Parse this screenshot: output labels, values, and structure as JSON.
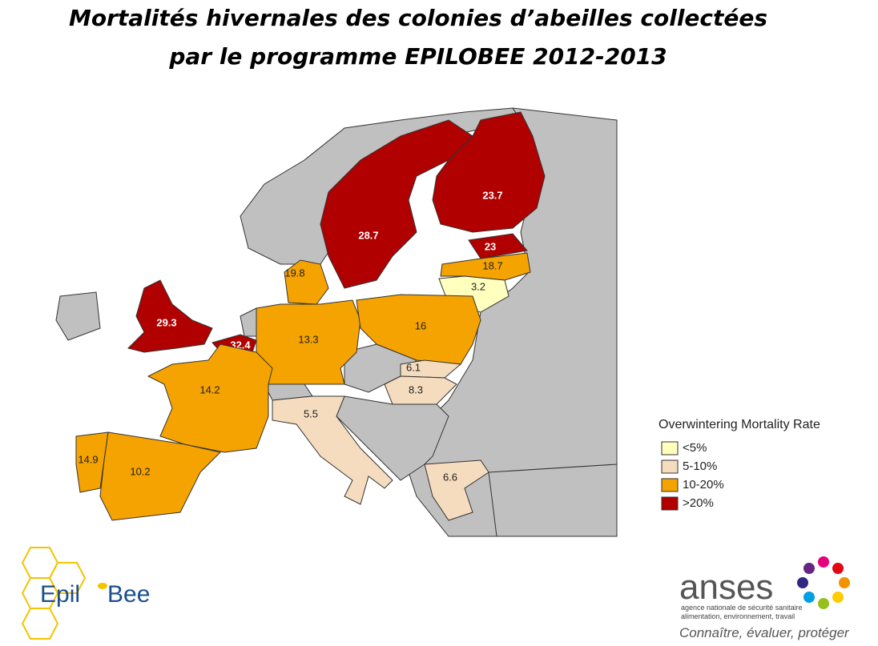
{
  "title": [
    "Mortalités hivernales des colonies d’abeilles collectées",
    "par le programme EPILOBEE 2012-2013"
  ],
  "regions": [
    {
      "value": 28.7,
      "color": "#b00000"
    },
    {
      "value": 23.7,
      "color": "#b00000"
    },
    {
      "value": 23.0,
      "color": "#b00000"
    },
    {
      "value": 18.7,
      "color": "#f5a300"
    },
    {
      "value": 3.2,
      "color": "#ffffbe"
    },
    {
      "value": 19.8,
      "color": "#f5a300"
    },
    {
      "value": 29.3,
      "color": "#b00000"
    },
    {
      "value": 32.4,
      "color": "#b00000"
    },
    {
      "value": 13.3,
      "color": "#f5a300"
    },
    {
      "value": 16.0,
      "color": "#f5a300"
    },
    {
      "value": 6.1,
      "color": "#f5dcbe"
    },
    {
      "value": 8.3,
      "color": "#f5dcbe"
    },
    {
      "value": 14.2,
      "color": "#f5a300"
    },
    {
      "value": 5.5,
      "color": "#f5dcbe"
    },
    {
      "value": 6.6,
      "color": "#f5dcbe"
    },
    {
      "value": 14.9,
      "color": "#f5a300"
    },
    {
      "value": 10.2,
      "color": "#f5a300"
    }
  ],
  "legend": {
    "title": "Overwintering Mortality Rate",
    "items": [
      {
        "label": "<5%",
        "color": "#ffffbe"
      },
      {
        "label": "5-10%",
        "color": "#f5dcbe"
      },
      {
        "label": "10-20%",
        "color": "#f5a300"
      },
      {
        "label": ">20%",
        "color": "#b00000"
      }
    ]
  },
  "logos": {
    "epilobee": [
      "Epil",
      "Bee"
    ],
    "anses": {
      "name": "anses",
      "lines": [
        "agence nationale de sécurité sanitaire",
        "alimentation, environnement, travail"
      ],
      "motto": "Connaître, évaluer, protéger"
    }
  }
}
